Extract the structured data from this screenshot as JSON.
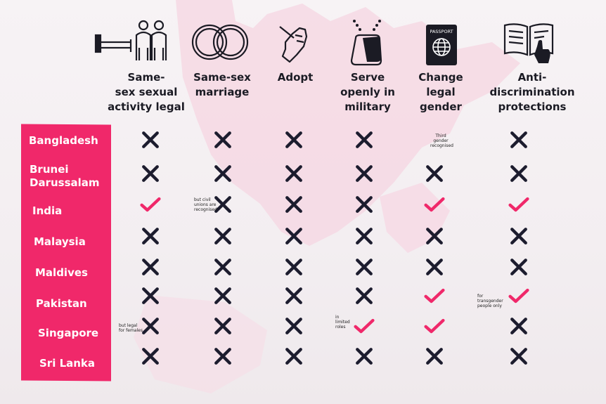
{
  "columns": [
    {
      "key": "sexual_activity",
      "label_lines": [
        "Same-",
        "sex sexual",
        "activity legal"
      ],
      "icon": "couple-bed-icon"
    },
    {
      "key": "marriage",
      "label_lines": [
        "Same-sex",
        "marriage"
      ],
      "icon": "wedding-rings-icon"
    },
    {
      "key": "adopt",
      "label_lines": [
        "Adopt"
      ],
      "icon": "hand-holding-hand-icon"
    },
    {
      "key": "military",
      "label_lines": [
        "Serve",
        "openly in",
        "military"
      ],
      "icon": "dog-tags-icon"
    },
    {
      "key": "gender",
      "label_lines": [
        "Change",
        "legal",
        "gender"
      ],
      "icon": "passport-icon"
    },
    {
      "key": "antidiscrimination",
      "label_lines": [
        "Anti-",
        "discrimination",
        "protections"
      ],
      "icon": "open-book-icon"
    }
  ],
  "passport_text": "PASSPORT",
  "countries": [
    {
      "name_lines": [
        "Bangladesh"
      ],
      "values": [
        "no",
        "no",
        "no",
        "no",
        "note",
        "no"
      ]
    },
    {
      "name_lines": [
        "Brunei",
        "Darussalam"
      ],
      "values": [
        "no",
        "no",
        "no",
        "no",
        "no",
        "no"
      ]
    },
    {
      "name_lines": [
        "India"
      ],
      "values": [
        "yes",
        "no",
        "no",
        "no",
        "yes",
        "yes"
      ]
    },
    {
      "name_lines": [
        "Malaysia"
      ],
      "values": [
        "no",
        "no",
        "no",
        "no",
        "no",
        "no"
      ]
    },
    {
      "name_lines": [
        "Maldives"
      ],
      "values": [
        "no",
        "no",
        "no",
        "no",
        "no",
        "no"
      ]
    },
    {
      "name_lines": [
        "Pakistan"
      ],
      "values": [
        "no",
        "no",
        "no",
        "no",
        "yes",
        "yes"
      ]
    },
    {
      "name_lines": [
        "Singapore"
      ],
      "values": [
        "no",
        "no",
        "no",
        "yes",
        "yes",
        "no"
      ]
    },
    {
      "name_lines": [
        "Sri Lanka"
      ],
      "values": [
        "no",
        "no",
        "no",
        "no",
        "no",
        "no"
      ]
    }
  ],
  "notes": [
    {
      "key": "bangladesh-gender",
      "lines": [
        "Third",
        "gender",
        "recognised"
      ]
    },
    {
      "key": "india-marriage",
      "lines": [
        "but civil",
        "unions are",
        "recognised"
      ]
    },
    {
      "key": "pakistan-antidiscrimination",
      "lines": [
        "for",
        "transgender",
        "people only"
      ]
    },
    {
      "key": "singapore-sexual",
      "lines": [
        "but legal",
        "for females"
      ]
    },
    {
      "key": "singapore-military",
      "lines": [
        "in",
        "limited",
        "roles"
      ]
    }
  ],
  "colors": {
    "cross": "#1c1c2e",
    "check": "#f0286a",
    "panel": "#f0286a",
    "map": "#f6d6e2"
  }
}
